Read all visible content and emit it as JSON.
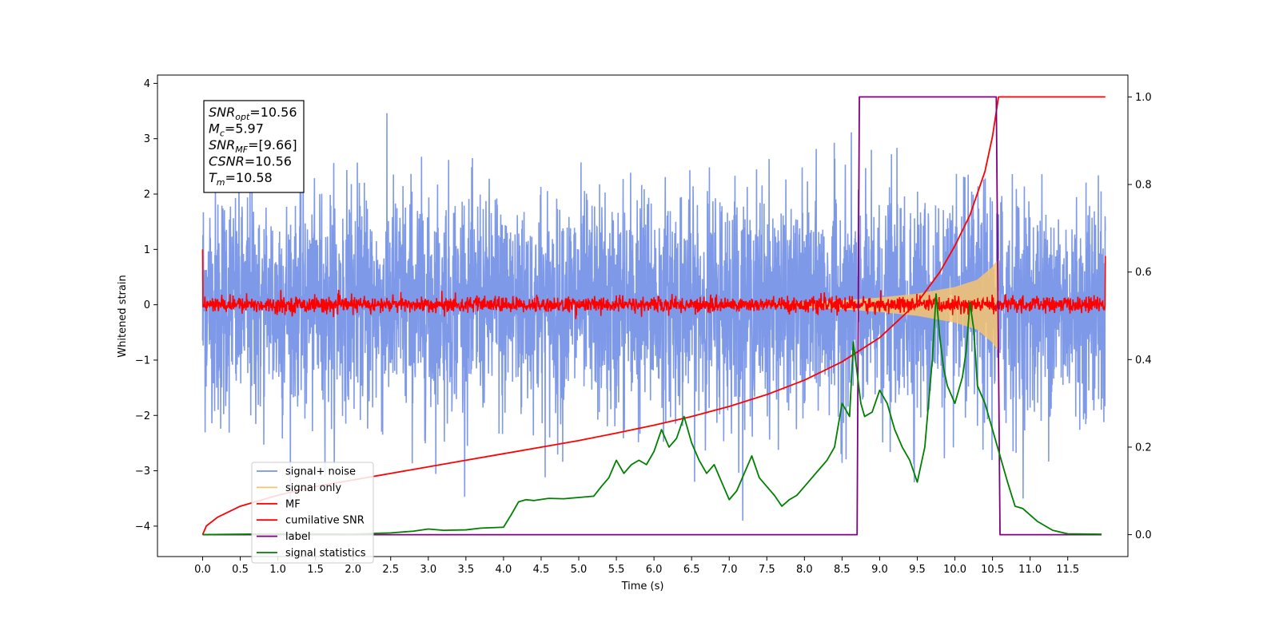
{
  "chart_data": {
    "type": "line",
    "xlabel": "Time (s)",
    "ylabel": "Whitened strain",
    "xlim": [
      -0.6,
      12.3
    ],
    "ylim": [
      -4.55,
      4.15
    ],
    "y2lim": [
      -0.05,
      1.05
    ],
    "x_ticks": [
      0.0,
      0.5,
      1.0,
      1.5,
      2.0,
      2.5,
      3.0,
      3.5,
      4.0,
      4.5,
      5.0,
      5.5,
      6.0,
      6.5,
      7.0,
      7.5,
      8.0,
      8.5,
      9.0,
      9.5,
      10.0,
      10.5,
      11.0,
      11.5
    ],
    "x_tick_labels": [
      "0.0",
      "0.5",
      "1.0",
      "1.5",
      "2.0",
      "2.5",
      "3.0",
      "3.5",
      "4.0",
      "4.5",
      "5.0",
      "5.5",
      "6.0",
      "6.5",
      "7.0",
      "7.5",
      "8.0",
      "8.5",
      "9.0",
      "9.5",
      "10.0",
      "10.5",
      "11.0",
      "11.5"
    ],
    "y_ticks": [
      -4,
      -3,
      -2,
      -1,
      0,
      1,
      2,
      3,
      4
    ],
    "y_tick_labels": [
      "−4",
      "−3",
      "−2",
      "−1",
      "0",
      "1",
      "2",
      "3",
      "4"
    ],
    "y2_ticks": [
      0.0,
      0.2,
      0.4,
      0.6,
      0.8,
      1.0
    ],
    "y2_tick_labels": [
      "0.0",
      "0.2",
      "0.4",
      "0.6",
      "0.8",
      "1.0"
    ],
    "grid": false,
    "legend_position": "lower-left",
    "info_box": [
      {
        "sym": "SNR",
        "sub": "opt",
        "rest": "=10.56"
      },
      {
        "sym": "M",
        "sub": "c",
        "rest": "=5.97"
      },
      {
        "sym": "SNR",
        "sub": "MF",
        "rest": "=[9.66]"
      },
      {
        "sym": "CSNR",
        "sub": "",
        "rest": "=10.56"
      },
      {
        "sym": "T",
        "sub": "m",
        "rest": "=10.58"
      }
    ],
    "series": [
      {
        "name": "signal+ noise",
        "axis": "left",
        "color": "#7893e8",
        "kind": "noise",
        "x_range": [
          0.0,
          12.0
        ],
        "y_range_approx": [
          -3.9,
          3.75
        ]
      },
      {
        "name": "signal only",
        "axis": "left",
        "color": "#f5c36e",
        "kind": "chirp",
        "x_range": [
          7.0,
          10.58
        ],
        "envelope": [
          [
            7.5,
            0.02
          ],
          [
            8.0,
            0.05
          ],
          [
            8.5,
            0.08
          ],
          [
            9.0,
            0.13
          ],
          [
            9.5,
            0.2
          ],
          [
            10.0,
            0.32
          ],
          [
            10.3,
            0.45
          ],
          [
            10.5,
            0.68
          ],
          [
            10.58,
            0.83
          ]
        ]
      },
      {
        "name": "MF",
        "axis": "left",
        "color": "#ff0000",
        "kind": "mf",
        "x_range": [
          0.0,
          12.0
        ],
        "y_range_approx": [
          -0.25,
          0.3
        ],
        "edge_values": {
          "start": 1.0,
          "end": 0.88
        }
      },
      {
        "name": "cumilative SNR",
        "axis": "right",
        "color": "#ff0000",
        "x": [
          0.0,
          0.05,
          0.2,
          0.5,
          1.0,
          1.5,
          2.0,
          2.5,
          3.0,
          3.5,
          4.0,
          4.5,
          5.0,
          5.5,
          6.0,
          6.5,
          7.0,
          7.5,
          8.0,
          8.5,
          9.0,
          9.5,
          9.8,
          10.0,
          10.2,
          10.4,
          10.5,
          10.58,
          12.0
        ],
        "y": [
          0.0,
          0.02,
          0.04,
          0.065,
          0.09,
          0.11,
          0.125,
          0.14,
          0.155,
          0.17,
          0.185,
          0.2,
          0.215,
          0.232,
          0.25,
          0.27,
          0.293,
          0.32,
          0.353,
          0.395,
          0.45,
          0.53,
          0.6,
          0.66,
          0.73,
          0.83,
          0.91,
          1.0,
          1.0
        ]
      },
      {
        "name": "label",
        "axis": "right",
        "color": "#800080",
        "x": [
          0.0,
          8.7,
          8.73,
          10.55,
          10.6,
          11.95
        ],
        "y": [
          0.0,
          0.0,
          1.0,
          1.0,
          0.0,
          0.0
        ]
      },
      {
        "name": "signal statistics",
        "axis": "right",
        "color": "#008000",
        "x": [
          0.0,
          1.0,
          2.0,
          2.3,
          2.5,
          2.8,
          3.0,
          3.2,
          3.5,
          3.7,
          4.0,
          4.1,
          4.2,
          4.3,
          4.4,
          4.6,
          4.8,
          5.0,
          5.2,
          5.3,
          5.4,
          5.5,
          5.6,
          5.7,
          5.8,
          5.9,
          6.0,
          6.1,
          6.2,
          6.3,
          6.4,
          6.5,
          6.6,
          6.7,
          6.8,
          6.9,
          7.0,
          7.1,
          7.2,
          7.3,
          7.4,
          7.5,
          7.6,
          7.7,
          7.8,
          7.9,
          8.0,
          8.1,
          8.2,
          8.3,
          8.4,
          8.5,
          8.6,
          8.65,
          8.7,
          8.75,
          8.8,
          8.9,
          9.0,
          9.1,
          9.2,
          9.3,
          9.4,
          9.5,
          9.6,
          9.7,
          9.75,
          9.8,
          9.85,
          9.9,
          10.0,
          10.1,
          10.15,
          10.2,
          10.25,
          10.3,
          10.4,
          10.5,
          10.6,
          10.7,
          10.8,
          10.9,
          11.0,
          11.1,
          11.3,
          11.5,
          11.95
        ],
        "y": [
          0.0,
          0.002,
          0.001,
          0.003,
          0.004,
          0.008,
          0.013,
          0.01,
          0.011,
          0.015,
          0.017,
          0.045,
          0.075,
          0.08,
          0.078,
          0.083,
          0.082,
          0.085,
          0.088,
          0.11,
          0.13,
          0.17,
          0.14,
          0.16,
          0.17,
          0.16,
          0.19,
          0.24,
          0.2,
          0.22,
          0.27,
          0.21,
          0.17,
          0.14,
          0.16,
          0.12,
          0.08,
          0.1,
          0.14,
          0.18,
          0.13,
          0.11,
          0.09,
          0.065,
          0.08,
          0.09,
          0.11,
          0.13,
          0.15,
          0.17,
          0.2,
          0.3,
          0.27,
          0.44,
          0.37,
          0.3,
          0.27,
          0.28,
          0.33,
          0.3,
          0.24,
          0.2,
          0.17,
          0.12,
          0.2,
          0.4,
          0.55,
          0.45,
          0.38,
          0.34,
          0.3,
          0.36,
          0.42,
          0.53,
          0.47,
          0.34,
          0.3,
          0.24,
          0.18,
          0.12,
          0.065,
          0.06,
          0.045,
          0.03,
          0.01,
          0.002,
          0.001
        ]
      }
    ]
  }
}
